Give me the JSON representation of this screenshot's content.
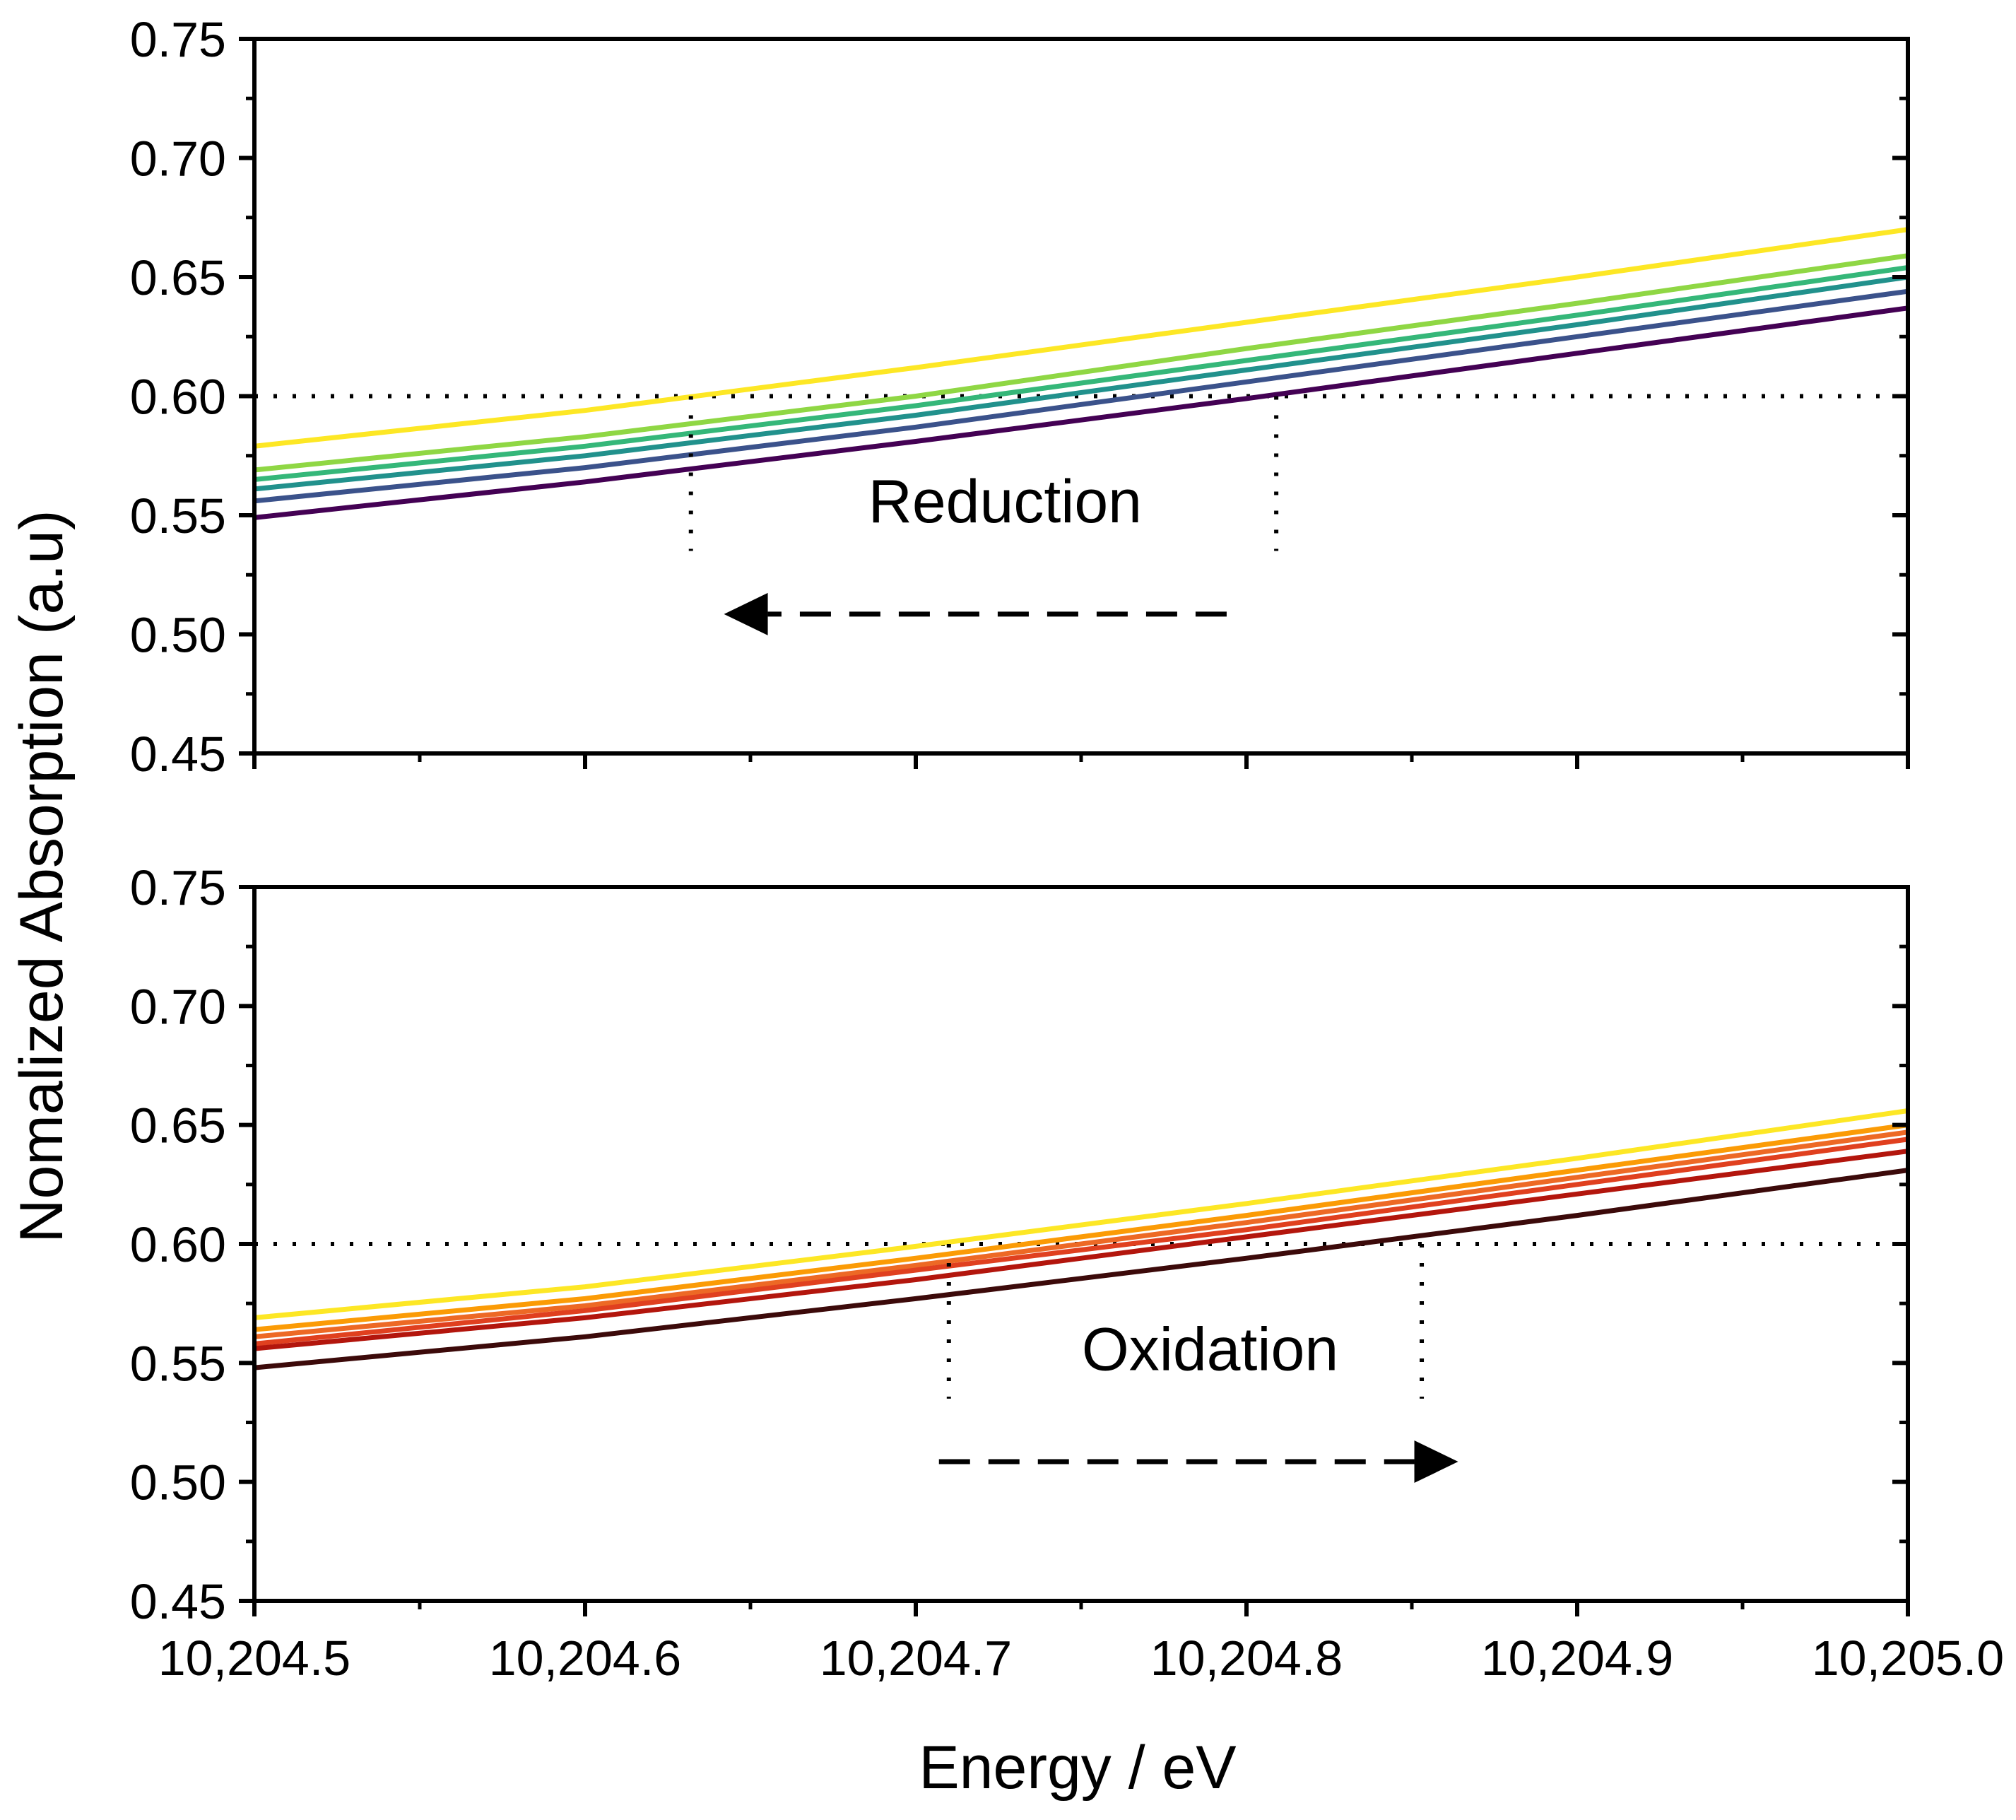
{
  "chart_data": {
    "type": "line",
    "xlabel": "Energy / eV",
    "ylabel": "Nomalized Absorption (a.u)",
    "xlim": [
      10204.5,
      10205.0
    ],
    "ylim": [
      0.45,
      0.75
    ],
    "x_ticks": [
      10204.5,
      10204.6,
      10204.7,
      10204.8,
      10204.9,
      10205.0
    ],
    "x_tick_labels": [
      "10,204.5",
      "10,204.6",
      "10,204.7",
      "10,204.8",
      "10,204.9",
      "10,205.0"
    ],
    "y_ticks": [
      0.45,
      0.5,
      0.55,
      0.6,
      0.65,
      0.7,
      0.75
    ],
    "y_tick_labels": [
      "0.45",
      "0.50",
      "0.55",
      "0.60",
      "0.65",
      "0.70",
      "0.75"
    ],
    "x_minor_step": 0.05,
    "y_minor_step": 0.025,
    "reference_level": 0.6,
    "panels": [
      {
        "id": "top",
        "annotation": "Reduction",
        "arrow_direction": "left",
        "arrow_from_x": 10204.794,
        "arrow_to_x": 10204.642,
        "arrow_y": 0.5085,
        "label_x": 10204.727,
        "label_y": 0.547,
        "crossing_markers": [
          {
            "x": 10204.632,
            "y_top": 0.6,
            "y_bottom": 0.535
          },
          {
            "x": 10204.809,
            "y_top": 0.6,
            "y_bottom": 0.535
          }
        ],
        "series": [
          {
            "color": "#fde725",
            "x": [
              10204.5,
              10204.6,
              10204.7,
              10204.8,
              10204.9,
              10205.0
            ],
            "y": [
              0.579,
              0.594,
              0.612,
              0.631,
              0.65,
              0.67
            ]
          },
          {
            "color": "#8fd744",
            "x": [
              10204.5,
              10204.6,
              10204.7,
              10204.8,
              10204.9,
              10205.0
            ],
            "y": [
              0.569,
              0.583,
              0.6,
              0.62,
              0.639,
              0.659
            ]
          },
          {
            "color": "#35b779",
            "x": [
              10204.5,
              10204.6,
              10204.7,
              10204.8,
              10204.9,
              10205.0
            ],
            "y": [
              0.565,
              0.579,
              0.596,
              0.615,
              0.634,
              0.654
            ]
          },
          {
            "color": "#21918c",
            "x": [
              10204.5,
              10204.6,
              10204.7,
              10204.8,
              10204.9,
              10205.0
            ],
            "y": [
              0.561,
              0.575,
              0.592,
              0.611,
              0.63,
              0.65
            ]
          },
          {
            "color": "#3b528b",
            "x": [
              10204.5,
              10204.6,
              10204.7,
              10204.8,
              10204.9,
              10205.0
            ],
            "y": [
              0.556,
              0.57,
              0.587,
              0.606,
              0.625,
              0.644
            ]
          },
          {
            "color": "#440154",
            "x": [
              10204.5,
              10204.6,
              10204.7,
              10204.8,
              10204.9,
              10205.0
            ],
            "y": [
              0.549,
              0.564,
              0.581,
              0.599,
              0.618,
              0.637
            ]
          }
        ]
      },
      {
        "id": "bottom",
        "annotation": "Oxidation",
        "arrow_direction": "right",
        "arrow_from_x": 10204.707,
        "arrow_to_x": 10204.864,
        "arrow_y": 0.5085,
        "label_x": 10204.789,
        "label_y": 0.547,
        "crossing_markers": [
          {
            "x": 10204.71,
            "y_top": 0.6,
            "y_bottom": 0.535
          },
          {
            "x": 10204.853,
            "y_top": 0.6,
            "y_bottom": 0.535
          }
        ],
        "series": [
          {
            "color": "#fde725",
            "x": [
              10204.5,
              10204.6,
              10204.7,
              10204.8,
              10204.9,
              10205.0
            ],
            "y": [
              0.569,
              0.582,
              0.599,
              0.617,
              0.636,
              0.656
            ]
          },
          {
            "color": "#fb9b06",
            "x": [
              10204.5,
              10204.6,
              10204.7,
              10204.8,
              10204.9,
              10205.0
            ],
            "y": [
              0.564,
              0.577,
              0.594,
              0.612,
              0.631,
              0.65
            ]
          },
          {
            "color": "#ed6925",
            "x": [
              10204.5,
              10204.6,
              10204.7,
              10204.8,
              10204.9,
              10205.0
            ],
            "y": [
              0.561,
              0.574,
              0.591,
              0.609,
              0.628,
              0.647
            ]
          },
          {
            "color": "#e0401f",
            "x": [
              10204.5,
              10204.6,
              10204.7,
              10204.8,
              10204.9,
              10205.0
            ],
            "y": [
              0.558,
              0.572,
              0.589,
              0.606,
              0.625,
              0.644
            ]
          },
          {
            "color": "#b3160d",
            "x": [
              10204.5,
              10204.6,
              10204.7,
              10204.8,
              10204.9,
              10205.0
            ],
            "y": [
              0.556,
              0.569,
              0.585,
              0.603,
              0.621,
              0.639
            ]
          },
          {
            "color": "#3c0a0a",
            "x": [
              10204.5,
              10204.6,
              10204.7,
              10204.8,
              10204.9,
              10205.0
            ],
            "y": [
              0.548,
              0.561,
              0.577,
              0.594,
              0.612,
              0.631
            ]
          }
        ]
      }
    ]
  }
}
